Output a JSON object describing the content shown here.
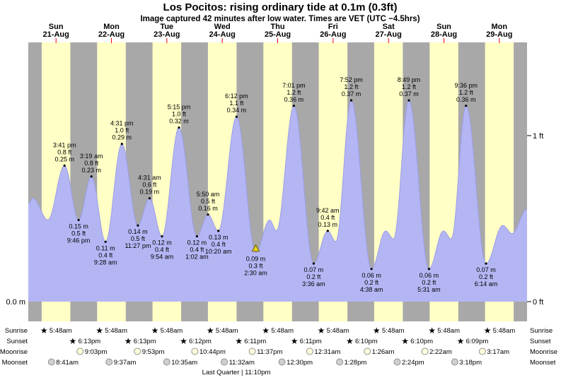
{
  "title": "Los Pocitos: rising ordinary tide at 0.1m (0.3ft)",
  "subtitle": "Image captured 42 minutes after low water. Times are VET (UTC −4.5hrs)",
  "axis": {
    "left_label": "0.0 m",
    "right_top": "1 ft",
    "right_bottom": "0 ft"
  },
  "colors": {
    "day_band": "#ffffc6",
    "night_band": "#a8a8a8",
    "tide_fill": "#b4b6f4",
    "tide_stroke": "#9a9de8",
    "day_label": "#ff0000",
    "marker_fill": "#ecd417",
    "marker_stroke": "#6b5d00",
    "sunrise_star": "#ddb927",
    "sunset_star": "#756414",
    "moonrise_fill": "#ffffdc",
    "moonset_fill": "#cfcfcf",
    "moon_stroke": "#8f8f8f",
    "text": "#000000"
  },
  "chart_data": {
    "type": "area",
    "title": "Los Pocitos: rising ordinary tide at 0.1m (0.3ft)",
    "x_range_hours": [
      0,
      216
    ],
    "hours_total": 216,
    "ylim_m": [
      0,
      0.48
    ],
    "unit_primary": "m",
    "unit_secondary": "ft",
    "sunrise_hour": 5.8,
    "sunset_hour": 18.2,
    "days": [
      {
        "name": "Sun",
        "date": "21-Aug"
      },
      {
        "name": "Mon",
        "date": "22-Aug"
      },
      {
        "name": "Tue",
        "date": "23-Aug"
      },
      {
        "name": "Wed",
        "date": "24-Aug"
      },
      {
        "name": "Thu",
        "date": "25-Aug"
      },
      {
        "name": "Fri",
        "date": "26-Aug"
      },
      {
        "name": "Sat",
        "date": "27-Aug"
      },
      {
        "name": "Sun",
        "date": "28-Aug"
      },
      {
        "name": "Mon",
        "date": "29-Aug"
      }
    ],
    "keypoints": [
      [
        0,
        0.18
      ],
      [
        2,
        0.19
      ],
      [
        8.5,
        0.15
      ],
      [
        15.68,
        0.25
      ],
      [
        21.77,
        0.15
      ],
      [
        27.32,
        0.23
      ],
      [
        33.47,
        0.11
      ],
      [
        40.52,
        0.29
      ],
      [
        47.45,
        0.14
      ],
      [
        52.52,
        0.19
      ],
      [
        57.9,
        0.12
      ],
      [
        65.25,
        0.32
      ],
      [
        73.03,
        0.12
      ],
      [
        77.83,
        0.16
      ],
      [
        82.33,
        0.13
      ],
      [
        90.2,
        0.34
      ],
      [
        98.5,
        0.09
      ],
      [
        104.5,
        0.15
      ],
      [
        107.5,
        0.13
      ],
      [
        115.02,
        0.36
      ],
      [
        123.6,
        0.07
      ],
      [
        129.7,
        0.13
      ],
      [
        133.2,
        0.11
      ],
      [
        139.87,
        0.37
      ],
      [
        148.63,
        0.06
      ],
      [
        154.8,
        0.13
      ],
      [
        158.2,
        0.115
      ],
      [
        164.82,
        0.37
      ],
      [
        173.52,
        0.06
      ],
      [
        179.8,
        0.13
      ],
      [
        183.2,
        0.115
      ],
      [
        189.6,
        0.36
      ],
      [
        198.23,
        0.07
      ],
      [
        205.5,
        0.14
      ],
      [
        209.5,
        0.125
      ],
      [
        216,
        0.17
      ]
    ],
    "extremes": [
      {
        "t": 15.68,
        "m": 0.25,
        "type": "high",
        "lines": [
          "3:41 pm",
          "0.8 ft",
          "0.25 m"
        ]
      },
      {
        "t": 21.77,
        "m": 0.15,
        "type": "low",
        "lines": [
          "0.15 m",
          "0.5 ft",
          "9:46 pm"
        ]
      },
      {
        "t": 27.32,
        "m": 0.23,
        "type": "high",
        "lines": [
          "3:19 am",
          "0.8 ft",
          "0.23 m"
        ]
      },
      {
        "t": 33.47,
        "m": 0.11,
        "type": "low",
        "lines": [
          "0.11 m",
          "0.4 ft",
          "9:28 am"
        ]
      },
      {
        "t": 40.52,
        "m": 0.29,
        "type": "high",
        "lines": [
          "4:31 pm",
          "1.0 ft",
          "0.29 m"
        ]
      },
      {
        "t": 47.45,
        "m": 0.14,
        "type": "low",
        "lines": [
          "0.14 m",
          "0.5 ft",
          "11:27 pm"
        ]
      },
      {
        "t": 52.52,
        "m": 0.19,
        "type": "high",
        "lines": [
          "4:31 am",
          "0.6 ft",
          "0.19 m"
        ]
      },
      {
        "t": 57.9,
        "m": 0.12,
        "type": "low",
        "lines": [
          "0.12 m",
          "0.4 ft",
          "9:54 am"
        ]
      },
      {
        "t": 65.25,
        "m": 0.32,
        "type": "high",
        "lines": [
          "5:15 pm",
          "1.0 ft",
          "0.32 m"
        ]
      },
      {
        "t": 73.03,
        "m": 0.12,
        "type": "low",
        "lines": [
          "0.12 m",
          "0.4 ft",
          "1:02 am"
        ]
      },
      {
        "t": 77.83,
        "m": 0.16,
        "type": "high",
        "lines": [
          "5:50 am",
          "0.5 ft",
          "0.16 m"
        ]
      },
      {
        "t": 82.33,
        "m": 0.13,
        "type": "low",
        "lines": [
          "0.13 m",
          "0.4 ft",
          "10:20 am"
        ]
      },
      {
        "t": 90.2,
        "m": 0.34,
        "type": "high",
        "lines": [
          "6:12 pm",
          "1.1 ft",
          "0.34 m"
        ]
      },
      {
        "t": 98.5,
        "m": 0.09,
        "type": "low-current",
        "lines": [
          "0.09 m",
          "0.3 ft",
          "2:30 am"
        ]
      },
      {
        "t": 115.02,
        "m": 0.36,
        "type": "high",
        "lines": [
          "7:01 pm",
          "1.2 ft",
          "0.36 m"
        ]
      },
      {
        "t": 123.6,
        "m": 0.07,
        "type": "low",
        "lines": [
          "0.07 m",
          "0.2 ft",
          "3:36 am"
        ]
      },
      {
        "t": 129.7,
        "m": 0.13,
        "type": "high",
        "lines": [
          "9:42 am",
          "0.4 ft",
          "0.13 m"
        ]
      },
      {
        "t": 139.87,
        "m": 0.37,
        "type": "high",
        "lines": [
          "7:52 pm",
          "1.2 ft",
          "0.37 m"
        ]
      },
      {
        "t": 148.63,
        "m": 0.06,
        "type": "low",
        "lines": [
          "0.06 m",
          "0.2 ft",
          "4:38 am"
        ]
      },
      {
        "t": 164.82,
        "m": 0.37,
        "type": "high",
        "lines": [
          "8:49 pm",
          "1.2 ft",
          "0.37 m"
        ]
      },
      {
        "t": 173.52,
        "m": 0.06,
        "type": "low",
        "lines": [
          "0.06 m",
          "0.2 ft",
          "5:31 am"
        ]
      },
      {
        "t": 189.6,
        "m": 0.36,
        "type": "high",
        "lines": [
          "9:36 pm",
          "1.2 ft",
          "0.36 m"
        ]
      },
      {
        "t": 198.23,
        "m": 0.07,
        "type": "low",
        "lines": [
          "0.07 m",
          "0.2 ft",
          "6:14 am"
        ]
      }
    ]
  },
  "almanac": {
    "rows": [
      {
        "label": "Sunrise",
        "icon": "sunrise-star-icon",
        "entries": [
          {
            "time": "5:48am",
            "t": 5.8
          },
          {
            "time": "5:48am",
            "t": 29.8
          },
          {
            "time": "5:48am",
            "t": 53.8
          },
          {
            "time": "5:48am",
            "t": 77.8
          },
          {
            "time": "5:48am",
            "t": 101.8
          },
          {
            "time": "5:48am",
            "t": 125.8
          },
          {
            "time": "5:48am",
            "t": 149.8
          },
          {
            "time": "5:48am",
            "t": 173.8
          },
          {
            "time": "5:48am",
            "t": 197.8
          }
        ]
      },
      {
        "label": "Sunset",
        "icon": "sunset-star-icon",
        "entries": [
          {
            "time": "6:13pm",
            "t": 18.22
          },
          {
            "time": "6:13pm",
            "t": 42.22
          },
          {
            "time": "6:12pm",
            "t": 66.2
          },
          {
            "time": "6:11pm",
            "t": 90.18
          },
          {
            "time": "6:11pm",
            "t": 114.18
          },
          {
            "time": "6:10pm",
            "t": 138.17
          },
          {
            "time": "6:10pm",
            "t": 162.17
          },
          {
            "time": "6:09pm",
            "t": 186.15
          }
        ]
      },
      {
        "label": "Moonrise",
        "icon": "moonrise-icon",
        "entries": [
          {
            "time": "9:03pm",
            "t": 21.05
          },
          {
            "time": "9:53pm",
            "t": 45.88
          },
          {
            "time": "10:44pm",
            "t": 70.73
          },
          {
            "time": "11:37pm",
            "t": 95.62
          },
          {
            "time": "12:31am",
            "t": 120.52
          },
          {
            "time": "1:26am",
            "t": 145.43
          },
          {
            "time": "2:22am",
            "t": 170.37
          },
          {
            "time": "3:17am",
            "t": 195.28
          }
        ]
      },
      {
        "label": "Moonset",
        "icon": "moonset-icon",
        "entries": [
          {
            "time": "8:41am",
            "t": 8.68
          },
          {
            "time": "9:37am",
            "t": 33.62
          },
          {
            "time": "10:35am",
            "t": 58.58
          },
          {
            "time": "11:32am",
            "t": 83.53
          },
          {
            "time": "12:30pm",
            "t": 108.5
          },
          {
            "time": "1:28pm",
            "t": 133.47
          },
          {
            "time": "2:24pm",
            "t": 158.4
          },
          {
            "time": "3:18pm",
            "t": 183.3
          }
        ]
      }
    ],
    "footer": "Last Quarter | 11:10pm"
  }
}
